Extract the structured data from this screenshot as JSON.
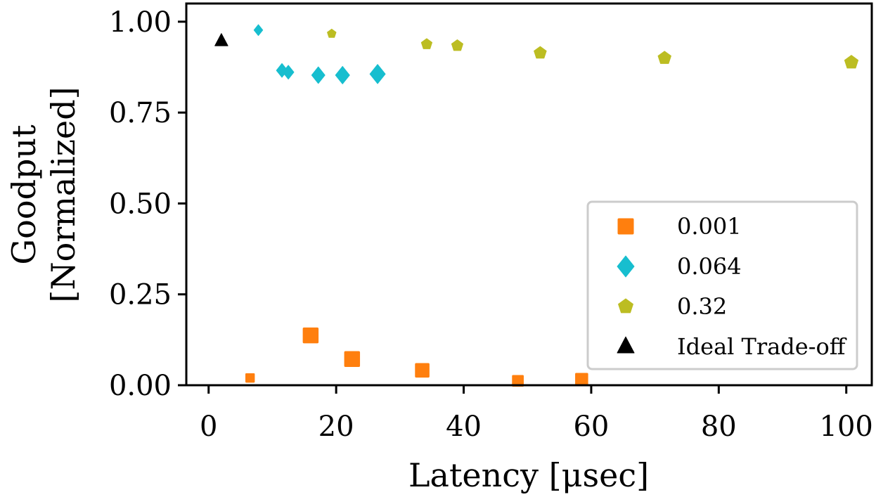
{
  "chart_data": {
    "type": "scatter",
    "title": "",
    "xlabel": "Latency [μsec]",
    "ylabel": [
      "Goodput",
      "[Normalized]"
    ],
    "xlim": [
      -3.5,
      104
    ],
    "ylim": [
      0.0,
      1.05
    ],
    "xticks": [
      0,
      20,
      40,
      60,
      80,
      100
    ],
    "xtick_labels": [
      "0",
      "20",
      "40",
      "60",
      "80",
      "100"
    ],
    "yticks": [
      0.0,
      0.25,
      0.5,
      0.75,
      1.0
    ],
    "ytick_labels": [
      "0.00",
      "0.25",
      "0.50",
      "0.75",
      "1.00"
    ],
    "grid": false,
    "legend_position": "bottom-right",
    "series": [
      {
        "name": "0.001",
        "marker": "square",
        "color": "#ff7f0e",
        "points": [
          {
            "x": 6.5,
            "y": 0.02,
            "size": 1
          },
          {
            "x": 16.0,
            "y": 0.137,
            "size": 3
          },
          {
            "x": 22.5,
            "y": 0.072,
            "size": 3
          },
          {
            "x": 33.5,
            "y": 0.041,
            "size": 2.5
          },
          {
            "x": 48.5,
            "y": 0.012,
            "size": 1.6
          },
          {
            "x": 58.5,
            "y": 0.016,
            "size": 2
          }
        ]
      },
      {
        "name": "0.064",
        "marker": "diamond",
        "color": "#17becf",
        "points": [
          {
            "x": 7.8,
            "y": 0.977,
            "size": 1
          },
          {
            "x": 11.5,
            "y": 0.866,
            "size": 1.6
          },
          {
            "x": 12.5,
            "y": 0.861,
            "size": 1.6
          },
          {
            "x": 17.2,
            "y": 0.853,
            "size": 2.3
          },
          {
            "x": 21.0,
            "y": 0.853,
            "size": 2.6
          },
          {
            "x": 26.5,
            "y": 0.856,
            "size": 3.1
          }
        ]
      },
      {
        "name": "0.32",
        "marker": "pentagon",
        "color": "#bcbd22",
        "points": [
          {
            "x": 19.3,
            "y": 0.967,
            "size": 1
          },
          {
            "x": 34.2,
            "y": 0.938,
            "size": 1.5
          },
          {
            "x": 39.0,
            "y": 0.934,
            "size": 1.7
          },
          {
            "x": 52.0,
            "y": 0.914,
            "size": 2
          },
          {
            "x": 71.5,
            "y": 0.9,
            "size": 2.2
          },
          {
            "x": 100.8,
            "y": 0.888,
            "size": 2.4
          }
        ]
      },
      {
        "name": "Ideal Trade-off",
        "marker": "triangle",
        "color": "#000000",
        "points": [
          {
            "x": 2.0,
            "y": 0.947,
            "size": 2.2
          }
        ]
      }
    ]
  }
}
